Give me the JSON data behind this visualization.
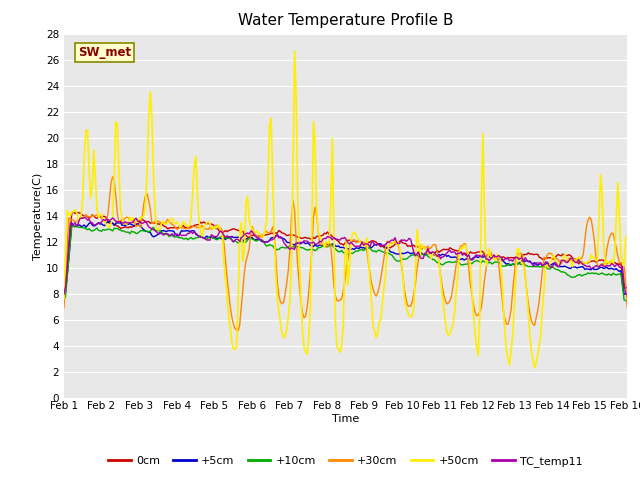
{
  "title": "Water Temperature Profile B",
  "xlabel": "Time",
  "ylabel": "Temperature(C)",
  "ylim": [
    0,
    28
  ],
  "yticks": [
    0,
    2,
    4,
    6,
    8,
    10,
    12,
    14,
    16,
    18,
    20,
    22,
    24,
    26,
    28
  ],
  "xtick_labels": [
    "Feb 1",
    "Feb 2",
    "Feb 3",
    "Feb 4",
    "Feb 5",
    "Feb 6",
    "Feb 7",
    "Feb 8",
    "Feb 9",
    "Feb 10",
    "Feb 11",
    "Feb 12",
    "Feb 13",
    "Feb 14",
    "Feb 15",
    "Feb 16"
  ],
  "series": {
    "0cm": {
      "color": "#cc0000",
      "lw": 1.0
    },
    "+5cm": {
      "color": "#0000cc",
      "lw": 1.0
    },
    "+10cm": {
      "color": "#00aa00",
      "lw": 1.0
    },
    "+30cm": {
      "color": "#ff8800",
      "lw": 1.0
    },
    "+50cm": {
      "color": "#ffee00",
      "lw": 1.2
    },
    "TC_temp11": {
      "color": "#aa00aa",
      "lw": 1.0
    }
  },
  "annotation_label": "SW_met",
  "annotation_color": "#880000",
  "annotation_bg": "#ffffcc",
  "annotation_border": "#888800",
  "plot_bg": "#e8e8e8",
  "grid_color": "#ffffff",
  "title_fontsize": 11,
  "axis_fontsize": 8,
  "tick_fontsize": 7.5
}
